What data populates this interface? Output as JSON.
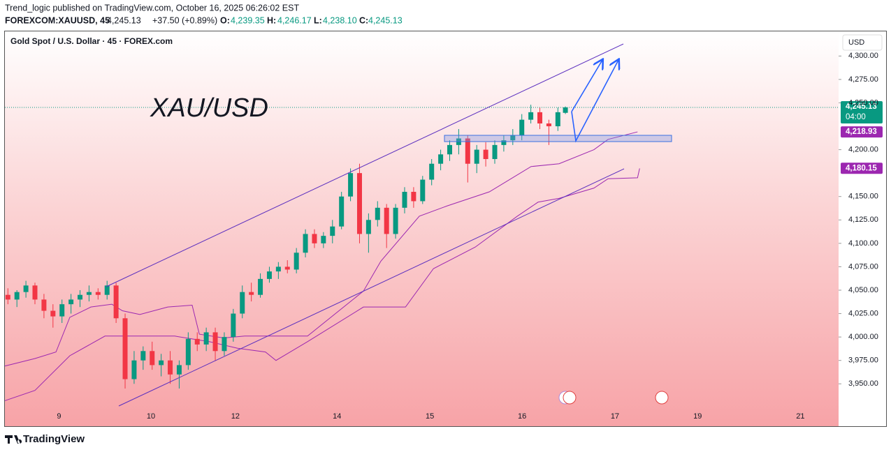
{
  "header": {
    "published": "Trend_logic published on TradingView.com, October 16, 2025 06:26:02 EST",
    "symbol": "FOREXCOM:XAUUSD, 45",
    "last": "4,245.13",
    "change": "+37.50 (+0.89%)",
    "o_label": "O:",
    "o": "4,239.35",
    "h_label": "H:",
    "h": "4,246.17",
    "l_label": "L:",
    "l": "4,238.10",
    "c_label": "C:",
    "c": "4,245.13"
  },
  "footer": {
    "brand": "TradingView"
  },
  "chart_data": {
    "type": "candlestick",
    "title": "Gold Spot / U.S. Dollar · 45 · FOREX.com",
    "annotation": "XAU/USD",
    "currency": "USD",
    "up_color": "#089981",
    "down_color": "#f23645",
    "xlim": [
      0,
      277.4
    ],
    "xticks": [
      {
        "value": 18,
        "label": "9"
      },
      {
        "value": 48.6,
        "label": "10"
      },
      {
        "value": 76.7,
        "label": "12"
      },
      {
        "value": 110.5,
        "label": "14"
      },
      {
        "value": 141.4,
        "label": "15"
      },
      {
        "value": 172.1,
        "label": "16"
      },
      {
        "value": 203,
        "label": "17"
      },
      {
        "value": 230.5,
        "label": "19"
      },
      {
        "value": 264.7,
        "label": "21"
      }
    ],
    "ylim": [
      3926.3,
      4326.3
    ],
    "yticks": [
      {
        "value": 4300,
        "label": "4,300.00"
      },
      {
        "value": 4275,
        "label": "4,275.00"
      },
      {
        "value": 4250,
        "label": "4,250.00"
      },
      {
        "value": 4200,
        "label": "4,200.00"
      },
      {
        "value": 4150,
        "label": "4,150.00"
      },
      {
        "value": 4125,
        "label": "4,125.00"
      },
      {
        "value": 4100,
        "label": "4,100.00"
      },
      {
        "value": 4075,
        "label": "4,075.00"
      },
      {
        "value": 4050,
        "label": "4,050.00"
      },
      {
        "value": 4025,
        "label": "4,025.00"
      },
      {
        "value": 4000,
        "label": "4,000.00"
      },
      {
        "value": 3975,
        "label": "3,975.00"
      },
      {
        "value": 3950,
        "label": "3,950.00"
      }
    ],
    "candles": [
      {
        "x": 1,
        "open": 4045,
        "high": 4052,
        "low": 4035,
        "close": 4040
      },
      {
        "x": 4,
        "open": 4040,
        "high": 4050,
        "low": 4032,
        "close": 4048
      },
      {
        "x": 7,
        "open": 4048,
        "high": 4060,
        "low": 4042,
        "close": 4055
      },
      {
        "x": 10,
        "open": 4055,
        "high": 4058,
        "low": 4035,
        "close": 4040
      },
      {
        "x": 13,
        "open": 4040,
        "high": 4046,
        "low": 4020,
        "close": 4028
      },
      {
        "x": 16,
        "open": 4028,
        "high": 4035,
        "low": 4010,
        "close": 4022
      },
      {
        "x": 19,
        "open": 4022,
        "high": 4040,
        "low": 4015,
        "close": 4035
      },
      {
        "x": 22,
        "open": 4035,
        "high": 4046,
        "low": 4025,
        "close": 4040
      },
      {
        "x": 25,
        "open": 4040,
        "high": 4050,
        "low": 4032,
        "close": 4045
      },
      {
        "x": 28,
        "open": 4045,
        "high": 4055,
        "low": 4038,
        "close": 4048
      },
      {
        "x": 31,
        "open": 4048,
        "high": 4052,
        "low": 4040,
        "close": 4045
      },
      {
        "x": 34,
        "open": 4045,
        "high": 4060,
        "low": 4040,
        "close": 4055
      },
      {
        "x": 37,
        "open": 4055,
        "high": 4058,
        "low": 4015,
        "close": 4020
      },
      {
        "x": 40,
        "open": 4020,
        "high": 4025,
        "low": 3945,
        "close": 3955
      },
      {
        "x": 43,
        "open": 3955,
        "high": 3985,
        "low": 3950,
        "close": 3975
      },
      {
        "x": 46,
        "open": 3975,
        "high": 3990,
        "low": 3965,
        "close": 3985
      },
      {
        "x": 49,
        "open": 3985,
        "high": 3995,
        "low": 3965,
        "close": 3970
      },
      {
        "x": 52,
        "open": 3970,
        "high": 3982,
        "low": 3958,
        "close": 3975
      },
      {
        "x": 55,
        "open": 3975,
        "high": 3985,
        "low": 3950,
        "close": 3960
      },
      {
        "x": 58,
        "open": 3960,
        "high": 3975,
        "low": 3945,
        "close": 3970
      },
      {
        "x": 61,
        "open": 3970,
        "high": 4005,
        "low": 3965,
        "close": 3998
      },
      {
        "x": 64,
        "open": 3998,
        "high": 4005,
        "low": 3985,
        "close": 3992
      },
      {
        "x": 67,
        "open": 3992,
        "high": 4010,
        "low": 3985,
        "close": 4005
      },
      {
        "x": 70,
        "open": 4005,
        "high": 4010,
        "low": 3975,
        "close": 3985
      },
      {
        "x": 73,
        "open": 3985,
        "high": 4005,
        "low": 3980,
        "close": 4000
      },
      {
        "x": 76,
        "open": 4000,
        "high": 4030,
        "low": 3995,
        "close": 4025
      },
      {
        "x": 79,
        "open": 4025,
        "high": 4055,
        "low": 4020,
        "close": 4048
      },
      {
        "x": 82,
        "open": 4048,
        "high": 4058,
        "low": 4038,
        "close": 4045
      },
      {
        "x": 85,
        "open": 4045,
        "high": 4068,
        "low": 4042,
        "close": 4062
      },
      {
        "x": 88,
        "open": 4062,
        "high": 4075,
        "low": 4058,
        "close": 4070
      },
      {
        "x": 91,
        "open": 4070,
        "high": 4080,
        "low": 4062,
        "close": 4075
      },
      {
        "x": 94,
        "open": 4075,
        "high": 4082,
        "low": 4068,
        "close": 4072
      },
      {
        "x": 97,
        "open": 4072,
        "high": 4095,
        "low": 4068,
        "close": 4090
      },
      {
        "x": 100,
        "open": 4090,
        "high": 4115,
        "low": 4085,
        "close": 4110
      },
      {
        "x": 103,
        "open": 4110,
        "high": 4115,
        "low": 4095,
        "close": 4100
      },
      {
        "x": 106,
        "open": 4100,
        "high": 4112,
        "low": 4095,
        "close": 4108
      },
      {
        "x": 109,
        "open": 4108,
        "high": 4125,
        "low": 4100,
        "close": 4118
      },
      {
        "x": 112,
        "open": 4118,
        "high": 4155,
        "low": 4115,
        "close": 4150
      },
      {
        "x": 115,
        "open": 4150,
        "high": 4180,
        "low": 4145,
        "close": 4175
      },
      {
        "x": 118,
        "open": 4175,
        "high": 4185,
        "low": 4100,
        "close": 4110
      },
      {
        "x": 121,
        "open": 4110,
        "high": 4132,
        "low": 4090,
        "close": 4125
      },
      {
        "x": 124,
        "open": 4125,
        "high": 4145,
        "low": 4118,
        "close": 4138
      },
      {
        "x": 127,
        "open": 4138,
        "high": 4142,
        "low": 4095,
        "close": 4110
      },
      {
        "x": 130,
        "open": 4110,
        "high": 4142,
        "low": 4105,
        "close": 4138
      },
      {
        "x": 133,
        "open": 4138,
        "high": 4160,
        "low": 4132,
        "close": 4155
      },
      {
        "x": 136,
        "open": 4155,
        "high": 4160,
        "low": 4138,
        "close": 4145
      },
      {
        "x": 139,
        "open": 4145,
        "high": 4172,
        "low": 4142,
        "close": 4168
      },
      {
        "x": 142,
        "open": 4168,
        "high": 4190,
        "low": 4162,
        "close": 4185
      },
      {
        "x": 145,
        "open": 4185,
        "high": 4200,
        "low": 4178,
        "close": 4195
      },
      {
        "x": 148,
        "open": 4195,
        "high": 4210,
        "low": 4188,
        "close": 4205
      },
      {
        "x": 151,
        "open": 4205,
        "high": 4222,
        "low": 4195,
        "close": 4212
      },
      {
        "x": 154,
        "open": 4212,
        "high": 4215,
        "low": 4165,
        "close": 4185
      },
      {
        "x": 157,
        "open": 4185,
        "high": 4205,
        "low": 4175,
        "close": 4200
      },
      {
        "x": 160,
        "open": 4200,
        "high": 4208,
        "low": 4182,
        "close": 4190
      },
      {
        "x": 163,
        "open": 4190,
        "high": 4210,
        "low": 4185,
        "close": 4205
      },
      {
        "x": 166,
        "open": 4205,
        "high": 4215,
        "low": 4198,
        "close": 4210
      },
      {
        "x": 169,
        "open": 4210,
        "high": 4222,
        "low": 4205,
        "close": 4215
      },
      {
        "x": 172,
        "open": 4215,
        "high": 4238,
        "low": 4210,
        "close": 4232
      },
      {
        "x": 175,
        "open": 4232,
        "high": 4248,
        "low": 4228,
        "close": 4240
      },
      {
        "x": 178,
        "open": 4240,
        "high": 4245,
        "low": 4222,
        "close": 4228
      },
      {
        "x": 181,
        "open": 4228,
        "high": 4232,
        "low": 4205,
        "close": 4225
      },
      {
        "x": 184,
        "open": 4225,
        "high": 4245,
        "low": 4220,
        "close": 4240
      },
      {
        "x": 186.5,
        "open": 4239.35,
        "high": 4246.17,
        "low": 4238.1,
        "close": 4245.13
      }
    ],
    "indicators": [
      {
        "color": "#9c27b0",
        "x": [
          0,
          10,
          17,
          21.6,
          28.6,
          35.6,
          39.1,
          44.9,
          54.2,
          62.3,
          64.7,
          72.8,
          79.8,
          100.7,
          119.3,
          125.1,
          137.9,
          147.2,
          161.2,
          175.1,
          184.4,
          196,
          200.7,
          210.5
        ],
        "values": [
          3969,
          3977,
          3984,
          4021,
          4032,
          4035,
          4028,
          4024,
          4032,
          4034,
          4003,
          3999,
          4001,
          4001,
          4049,
          4081,
          4129,
          4140,
          4155,
          4182,
          4185,
          4200,
          4211,
          4219
        ]
      },
      {
        "color": "#9c27b0",
        "x": [
          0,
          10,
          21.6,
          33.3,
          39.1,
          56.5,
          68.1,
          77.4,
          86.7,
          90.2,
          100.7,
          119.3,
          133.3,
          142.6,
          156.5,
          170.5,
          177.4,
          184.4,
          196,
          200.7,
          210.5,
          211.2
        ],
        "values": [
          3932,
          3943,
          3980,
          4001,
          4001,
          4001,
          3995,
          3988,
          3984,
          3975,
          3995,
          4032,
          4032,
          4073,
          4096,
          4129,
          4144,
          4148,
          4159,
          4169,
          4170,
          4180
        ]
      }
    ],
    "price_labels": [
      {
        "value": 4245.13,
        "label": "4,245.13",
        "sub": "04:00",
        "color": "#089981"
      },
      {
        "value": 4218.93,
        "label": "4,218.93",
        "color": "#9c27b0"
      },
      {
        "value": 4180.15,
        "label": "4,180.15",
        "color": "#9c27b0"
      }
    ]
  }
}
